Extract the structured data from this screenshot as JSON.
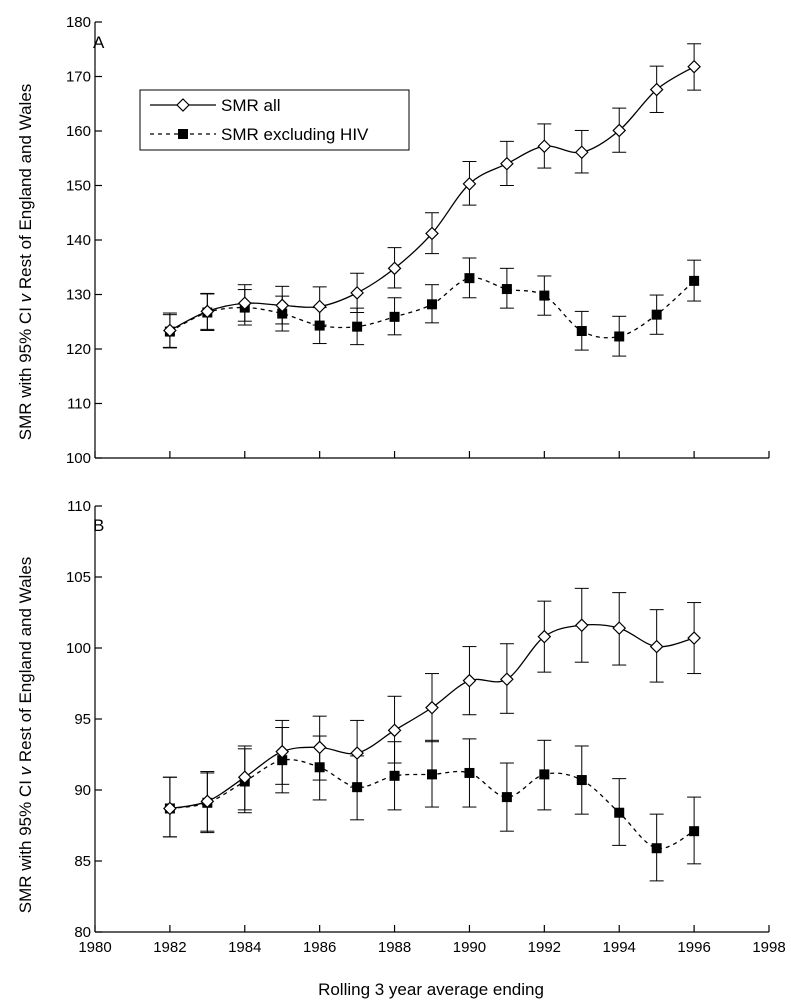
{
  "chart_data": [
    {
      "type": "line",
      "panel_label": "A",
      "ylabel": "SMR with 95% CI v Rest of England and Wales",
      "ylabel_parts": [
        "SMR with 95% CI ",
        "v",
        " Rest of England and Wales"
      ],
      "ylim": [
        100,
        180
      ],
      "yticks": [
        100,
        110,
        120,
        130,
        140,
        150,
        160,
        170,
        180
      ],
      "legend": {
        "placement": "top-left"
      },
      "series": [
        {
          "name": "SMR all",
          "marker": "open-diamond",
          "line": "solid",
          "x": [
            1982,
            1983,
            1984,
            1985,
            1986,
            1987,
            1988,
            1989,
            1990,
            1991,
            1992,
            1993,
            1994,
            1995,
            1996
          ],
          "values": [
            123.4,
            126.9,
            128.4,
            128.0,
            127.8,
            130.3,
            134.8,
            141.2,
            150.3,
            154.0,
            157.2,
            156.1,
            160.1,
            167.6,
            171.8
          ],
          "ci_low": [
            120.3,
            123.6,
            125.1,
            124.6,
            124.4,
            126.7,
            131.2,
            137.5,
            146.4,
            150.0,
            153.2,
            152.3,
            156.1,
            163.4,
            167.5
          ],
          "ci_high": [
            126.6,
            130.2,
            131.8,
            131.5,
            131.4,
            133.9,
            138.6,
            145.0,
            154.4,
            158.1,
            161.3,
            160.1,
            164.2,
            171.9,
            176.0
          ]
        },
        {
          "name": "SMR excluding HIV",
          "marker": "filled-square",
          "line": "dashed",
          "x": [
            1982,
            1983,
            1984,
            1985,
            1986,
            1987,
            1988,
            1989,
            1990,
            1991,
            1992,
            1993,
            1994,
            1995,
            1996
          ],
          "values": [
            123.2,
            126.7,
            127.6,
            126.5,
            124.3,
            124.1,
            125.9,
            128.2,
            133.0,
            131.0,
            129.8,
            123.3,
            122.3,
            126.3,
            132.5
          ],
          "ci_low": [
            120.2,
            123.4,
            124.4,
            123.3,
            121.0,
            120.8,
            122.6,
            124.8,
            129.4,
            127.5,
            126.2,
            119.8,
            118.7,
            122.7,
            128.8
          ],
          "ci_high": [
            126.3,
            130.1,
            130.9,
            129.7,
            127.6,
            127.5,
            129.4,
            131.8,
            136.7,
            134.8,
            133.4,
            126.9,
            126.0,
            129.9,
            136.3
          ]
        }
      ]
    },
    {
      "type": "line",
      "panel_label": "B",
      "ylabel": "SMR with 95% CI v Rest of England and Wales",
      "ylabel_parts": [
        "SMR with 95% CI ",
        "v",
        " Rest of England and Wales"
      ],
      "xlabel": "Rolling 3 year average ending",
      "xlim": [
        1980,
        1998
      ],
      "xticks": [
        1980,
        1982,
        1984,
        1986,
        1988,
        1990,
        1992,
        1994,
        1996,
        1998
      ],
      "ylim": [
        80,
        110
      ],
      "yticks": [
        80,
        85,
        90,
        95,
        100,
        105,
        110
      ],
      "series": [
        {
          "name": "SMR all",
          "marker": "open-diamond",
          "line": "solid",
          "x": [
            1982,
            1983,
            1984,
            1985,
            1986,
            1987,
            1988,
            1989,
            1990,
            1991,
            1992,
            1993,
            1994,
            1995,
            1996
          ],
          "values": [
            88.7,
            89.2,
            90.9,
            92.7,
            93.0,
            92.6,
            94.2,
            95.8,
            97.7,
            97.8,
            100.8,
            101.6,
            101.4,
            100.1,
            100.7
          ],
          "ci_low": [
            86.7,
            87.1,
            88.6,
            90.4,
            90.7,
            90.2,
            91.9,
            93.4,
            95.3,
            95.4,
            98.3,
            99.0,
            98.8,
            97.6,
            98.2
          ],
          "ci_high": [
            90.9,
            91.3,
            93.1,
            94.9,
            95.2,
            94.9,
            96.6,
            98.2,
            100.1,
            100.3,
            103.3,
            104.2,
            103.9,
            102.7,
            103.2
          ]
        },
        {
          "name": "SMR excluding HIV",
          "marker": "filled-square",
          "line": "dashed",
          "x": [
            1982,
            1983,
            1984,
            1985,
            1986,
            1987,
            1988,
            1989,
            1990,
            1991,
            1992,
            1993,
            1994,
            1995,
            1996
          ],
          "values": [
            88.7,
            89.1,
            90.6,
            92.1,
            91.6,
            90.2,
            91.0,
            91.1,
            91.2,
            89.5,
            91.1,
            90.7,
            88.4,
            85.9,
            87.1
          ],
          "ci_low": [
            86.7,
            87.0,
            88.4,
            89.8,
            89.3,
            87.9,
            88.6,
            88.8,
            88.8,
            87.1,
            88.6,
            88.3,
            86.1,
            83.6,
            84.8
          ],
          "ci_high": [
            90.9,
            91.2,
            92.9,
            94.4,
            93.8,
            92.4,
            93.4,
            93.5,
            93.6,
            91.9,
            93.5,
            93.1,
            90.8,
            88.3,
            89.5
          ]
        }
      ]
    }
  ]
}
